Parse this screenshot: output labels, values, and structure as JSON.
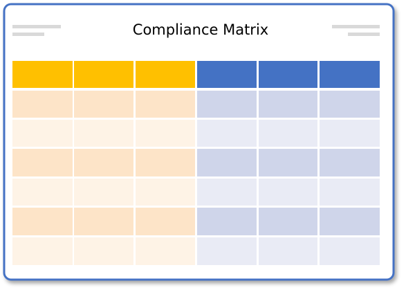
{
  "title": "Compliance Matrix"
}
